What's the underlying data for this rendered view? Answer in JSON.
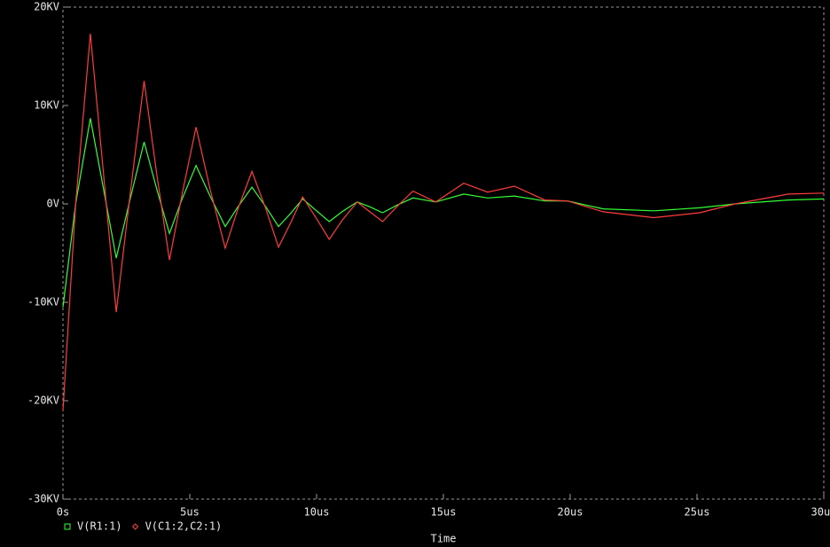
{
  "chart_data": {
    "type": "line",
    "x_label": "Time",
    "x": [
      0,
      0.5,
      1.08,
      1.6,
      2.1,
      2.65,
      3.2,
      3.7,
      4.2,
      4.7,
      5.25,
      5.8,
      6.4,
      6.9,
      7.45,
      8,
      8.5,
      9,
      9.45,
      10,
      10.5,
      11,
      11.6,
      12.1,
      12.6,
      13.2,
      13.8,
      14.7,
      15.8,
      16.75,
      17.8,
      19,
      19.9,
      21.3,
      23.3,
      25.1,
      26.5,
      28.6,
      30
    ],
    "series": [
      {
        "name": "V(R1:1)",
        "color": "#33ff33",
        "marker": "square",
        "values": [
          -10500,
          0,
          8700,
          1500,
          -5500,
          500,
          6300,
          1500,
          -3000,
          500,
          3900,
          800,
          -2300,
          -300,
          1700,
          -300,
          -2300,
          -900,
          500,
          -700,
          -1800,
          -800,
          200,
          -300,
          -900,
          -100,
          600,
          200,
          1000,
          600,
          800,
          300,
          300,
          -500,
          -700,
          -400,
          0,
          400,
          500
        ]
      },
      {
        "name": "V(C1:2,C2:1)",
        "color": "#ff3c3c",
        "marker": "diamond",
        "values": [
          -21000,
          0,
          17300,
          3000,
          -11000,
          1000,
          12500,
          3000,
          -5700,
          1000,
          7800,
          1500,
          -4500,
          -500,
          3300,
          -500,
          -4400,
          -1800,
          700,
          -1500,
          -3600,
          -1700,
          200,
          -800,
          -1800,
          -200,
          1300,
          200,
          2100,
          1200,
          1800,
          400,
          300,
          -800,
          -1400,
          -900,
          0,
          1000,
          1100
        ]
      }
    ],
    "xlim": [
      0,
      30
    ],
    "xticks": [
      {
        "value": 0,
        "label": "0s"
      },
      {
        "value": 5,
        "label": "5us"
      },
      {
        "value": 10,
        "label": "10us"
      },
      {
        "value": 15,
        "label": "15us"
      },
      {
        "value": 20,
        "label": "20us"
      },
      {
        "value": 25,
        "label": "25us"
      },
      {
        "value": 30,
        "label": "30us"
      }
    ],
    "ylim": [
      -30000,
      20000
    ],
    "yticks": [
      {
        "value": -30000,
        "label": "-30KV"
      },
      {
        "value": -20000,
        "label": "-20KV"
      },
      {
        "value": -10000,
        "label": "-10KV"
      },
      {
        "value": 0,
        "label": "0V"
      },
      {
        "value": 10000,
        "label": "10KV"
      },
      {
        "value": 20000,
        "label": "20KV"
      }
    ],
    "grid": false
  }
}
